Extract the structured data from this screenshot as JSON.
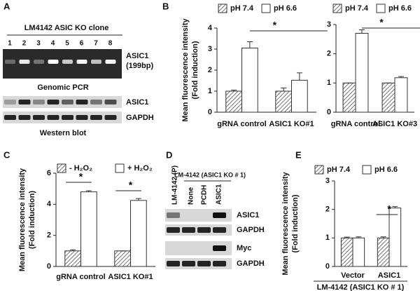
{
  "panel_labels": [
    "A",
    "B",
    "C",
    "D",
    "E"
  ],
  "gel_a": {
    "title": "LM4142 ASIC KO clone",
    "lanes": [
      "1",
      "2",
      "3",
      "4",
      "5",
      "6",
      "7",
      "8"
    ],
    "pcr_label": [
      "ASIC1",
      "(199bp)"
    ],
    "pcr_caption": "Genomic PCR",
    "wb_rows": [
      "ASIC1",
      "GAPDH"
    ],
    "wb_caption": "Western blot"
  },
  "gel_d": {
    "lanes": [
      "LM-4142 (P)",
      "None",
      "PCDH",
      "ASIC1"
    ],
    "group_label": "LM-4142 (ASIC1 KO # 1)",
    "rows": [
      "ASIC1",
      "GAPDH",
      "Myc",
      "GAPDH"
    ]
  },
  "chart_data": [
    {
      "type": "bar",
      "ylabel": [
        "Mean fluorescence intensity",
        "(Fold induction)"
      ],
      "categories": [
        "gRNA control",
        "ASIC1 KO#1"
      ],
      "series": [
        {
          "name": "pH 7.4",
          "color": "#ffffff",
          "hatch": true,
          "values": [
            1.0,
            1.0
          ],
          "errors": [
            0.05,
            0.15
          ]
        },
        {
          "name": "pH 6.6",
          "color": "#ffffff",
          "hatch": false,
          "values": [
            3.05,
            1.52
          ],
          "errors": [
            0.3,
            0.35
          ]
        }
      ],
      "ylim": [
        0,
        4
      ],
      "yticks": [
        0,
        1,
        2,
        3,
        4
      ],
      "annotations": [
        "*"
      ]
    },
    {
      "type": "bar",
      "categories": [
        "gRNA control",
        "ASIC1 KO#3"
      ],
      "series": [
        {
          "name": "pH 7.4",
          "color": "#ffffff",
          "hatch": true,
          "values": [
            1.0,
            1.0
          ],
          "errors": [
            0,
            0
          ]
        },
        {
          "name": "pH 6.6",
          "color": "#ffffff",
          "hatch": false,
          "values": [
            2.7,
            1.18
          ],
          "errors": [
            0.12,
            0.04
          ]
        }
      ],
      "ylim": [
        0,
        3
      ],
      "yticks": [
        0,
        1,
        2,
        3
      ],
      "annotations": [
        "*"
      ]
    },
    {
      "type": "bar",
      "ylabel": [
        "Mean fluorescence intensity",
        "(Fold induction)"
      ],
      "categories": [
        "gRNA control",
        "ASIC1 KO#1"
      ],
      "series": [
        {
          "name": "- H₂O₂",
          "color": "#ffffff",
          "hatch": true,
          "values": [
            1.0,
            1.0
          ],
          "errors": [
            0.07,
            0
          ]
        },
        {
          "name": "+ H₂O₂",
          "color": "#ffffff",
          "hatch": false,
          "values": [
            4.8,
            4.25
          ],
          "errors": [
            0.07,
            0.12
          ]
        }
      ],
      "ylim": [
        0,
        6
      ],
      "yticks": [
        0,
        2,
        4,
        6
      ],
      "annotations": [
        "*",
        "*"
      ]
    },
    {
      "type": "bar",
      "ylabel": [
        "Mean fluorescence intensity",
        "(Fold induction)"
      ],
      "categories": [
        "Vector",
        "ASIC1"
      ],
      "xlabel": "LM-4142 (ASIC1 KO # 1)",
      "series": [
        {
          "name": "pH 7.4",
          "color": "#ffffff",
          "hatch": true,
          "values": [
            1.0,
            1.0
          ],
          "errors": [
            0.03,
            0.04
          ]
        },
        {
          "name": "pH 6.6",
          "color": "#ffffff",
          "hatch": false,
          "values": [
            1.0,
            2.05
          ],
          "errors": [
            0.04,
            0.05
          ]
        }
      ],
      "ylim": [
        0,
        3
      ],
      "yticks": [
        0,
        1,
        2,
        3
      ],
      "annotations": [
        "*"
      ]
    }
  ]
}
